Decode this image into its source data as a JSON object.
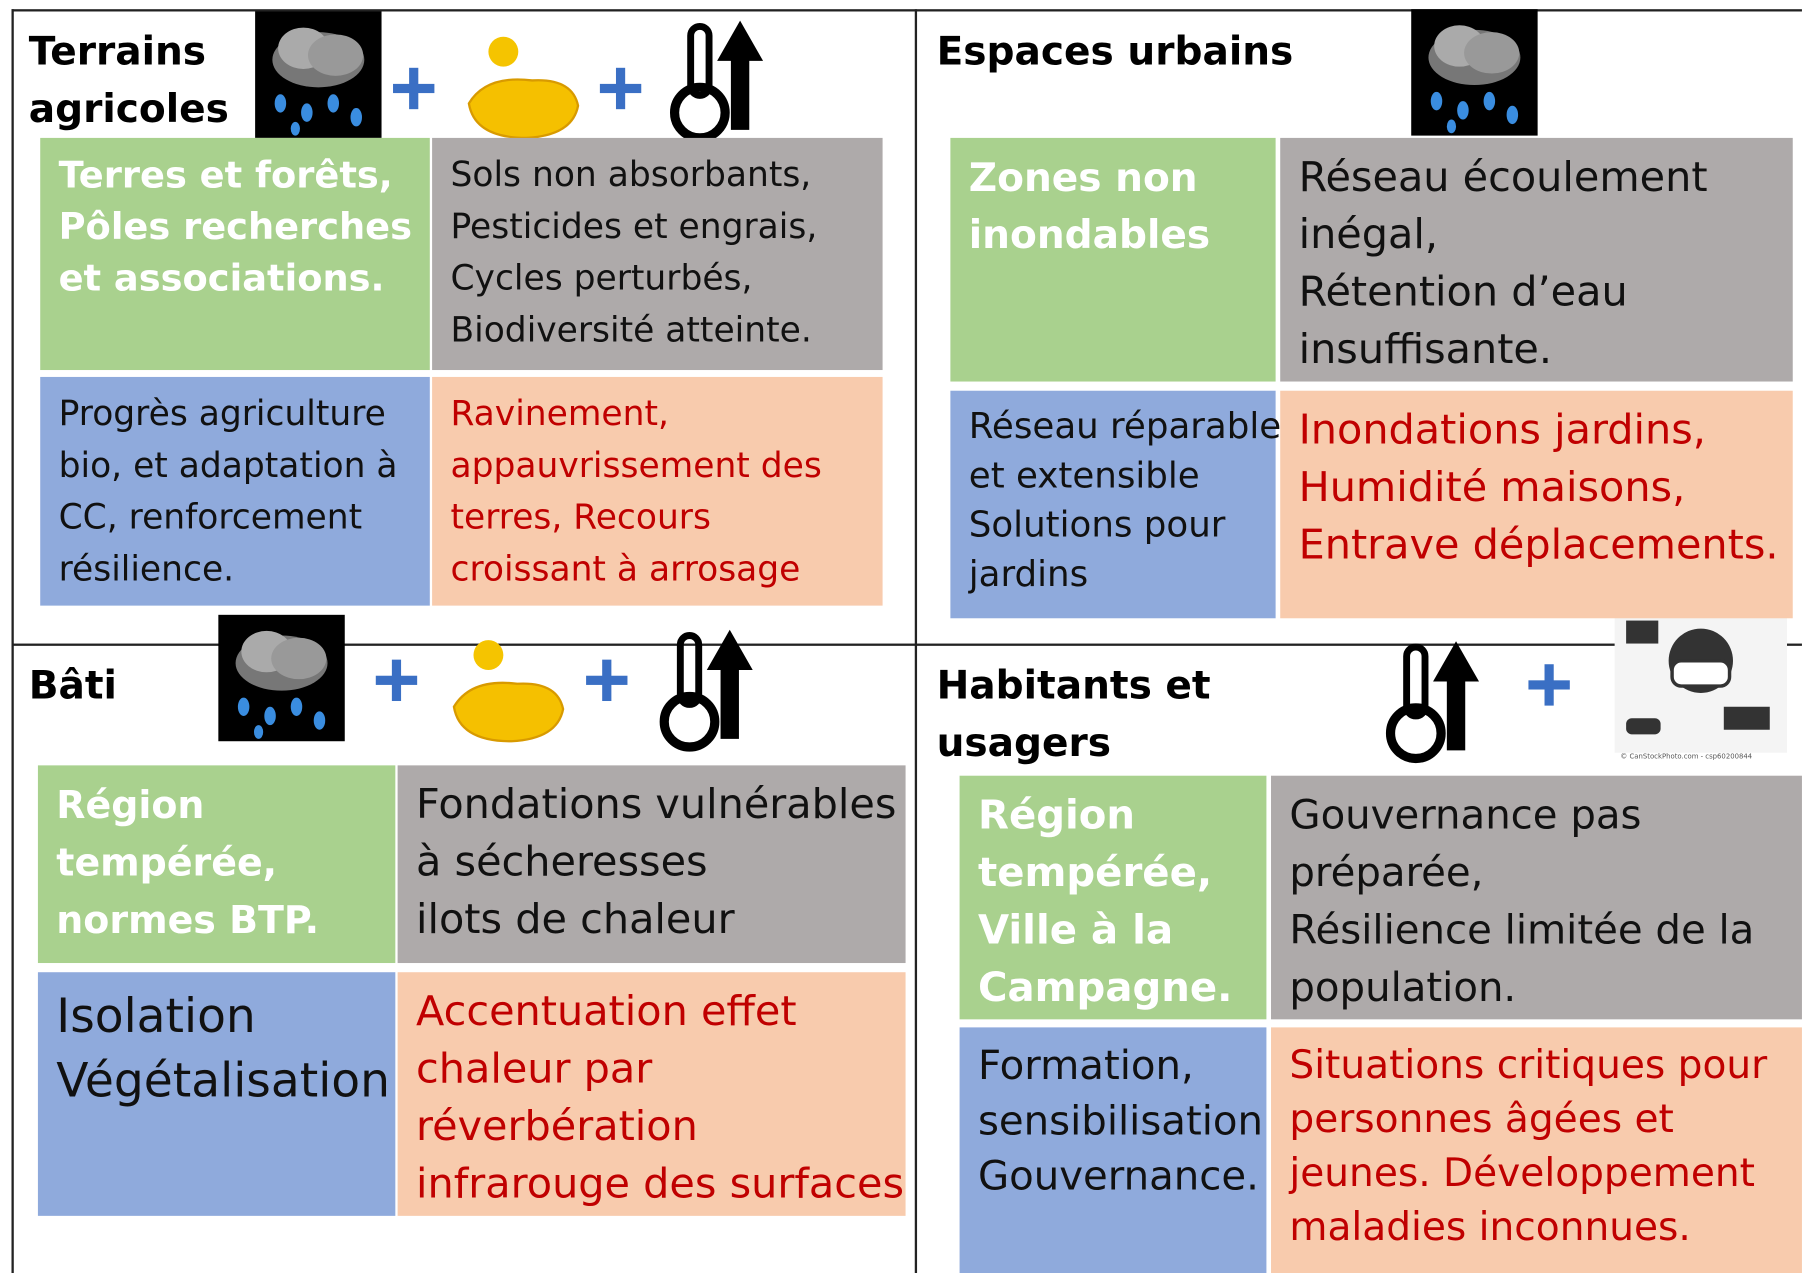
{
  "quadrants": [
    {
      "title": [
        "Terrains",
        "agricoles"
      ],
      "cells": [
        [
          "Terres et forêts,",
          "Pôles recherches",
          "et associations."
        ],
        [
          "Sols non absorbants,",
          "Pesticides et engrais,",
          "Cycles perturbés,",
          "Biodiversité atteinte."
        ],
        [
          "Progrès agriculture",
          "bio, et adaptation à",
          "CC, renforcement",
          "résilience."
        ],
        [
          "Ravinement,",
          "appauvrissement des",
          "terres, Recours",
          "croissant à arrosage"
        ]
      ]
    },
    {
      "title": [
        "Espaces urbains"
      ],
      "cells": [
        [
          "Zones non",
          "inondables"
        ],
        [
          "Réseau écoulement",
          "inégal,",
          "Rétention d’eau",
          "insuffisante."
        ],
        [
          "Réseau réparable",
          "et extensible",
          "Solutions pour",
          "jardins"
        ],
        [
          "Inondations jardins,",
          "Humidité maisons,",
          "Entrave déplacements."
        ]
      ]
    },
    {
      "title": [
        "Bâti"
      ],
      "cells": [
        [
          "Région",
          "tempérée,",
          "normes BTP."
        ],
        [
          "Fondations vulnérables",
          "à sécheresses",
          "ilots de chaleur"
        ],
        [
          "Isolation",
          "Végétalisation"
        ],
        [
          "Accentuation effet",
          "chaleur par",
          "réverbération",
          "infrarouge des surfaces"
        ]
      ]
    },
    {
      "title": [
        "Habitants et usagers"
      ],
      "cells": [
        [
          "Région",
          "tempérée,",
          "Ville à la",
          "Campagne."
        ],
        [
          "Gouvernance pas",
          "préparée,",
          "Résilience limitée de la",
          "population."
        ],
        [
          "Formation,",
          "sensibilisation",
          "Gouvernance."
        ],
        [
          "Situations critiques pour",
          "personnes âgées et",
          "jeunes. Développement",
          "maladies inconnues."
        ]
      ]
    }
  ],
  "image_credit": "© CanStockPhoto.com - csp60200844"
}
